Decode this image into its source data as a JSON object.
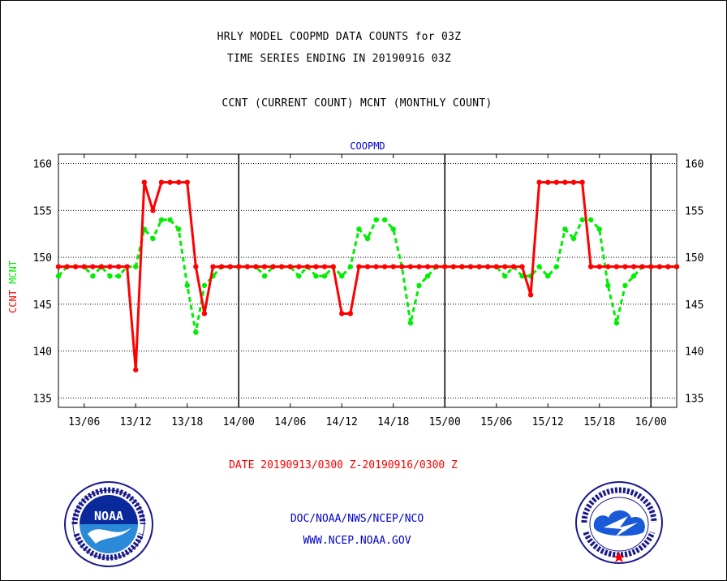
{
  "titles": {
    "line1": "HRLY MODEL COOPMD DATA COUNTS for 03Z",
    "line2": "TIME SERIES ENDING IN 20190916 03Z",
    "line3": "CCNT (CURRENT COUNT) MCNT (MONTHLY COUNT)"
  },
  "footer": {
    "date_range": "DATE 20190913/0300 Z-20190916/0300 Z",
    "org": "DOC/NOAA/NWS/NCEP/NCO",
    "url": "WWW.NCEP.NOAA.GOV"
  },
  "logos": {
    "left": {
      "icon": "noaa-logo",
      "text": "NOAA"
    },
    "right": {
      "icon": "nws-logo"
    }
  },
  "colors": {
    "ccnt": "#ff0000",
    "mcnt": "#00ee00",
    "label_blue": "#0000cc"
  },
  "chart_data": {
    "type": "line",
    "title": "COOPMD",
    "ylabel_parts": [
      {
        "text": "CCNT",
        "color": "#ff0000"
      },
      {
        "text": "MCNT",
        "color": "#00ee00"
      }
    ],
    "xlabel": "",
    "ylim": [
      134,
      161
    ],
    "yticks": [
      135,
      140,
      145,
      150,
      155,
      160
    ],
    "xlim": [
      0,
      72
    ],
    "xticks": [
      {
        "x": 3,
        "label": "13/06"
      },
      {
        "x": 9,
        "label": "13/12"
      },
      {
        "x": 15,
        "label": "13/18"
      },
      {
        "x": 21,
        "label": "14/00"
      },
      {
        "x": 27,
        "label": "14/06"
      },
      {
        "x": 33,
        "label": "14/12"
      },
      {
        "x": 39,
        "label": "14/18"
      },
      {
        "x": 45,
        "label": "15/00"
      },
      {
        "x": 51,
        "label": "15/06"
      },
      {
        "x": 57,
        "label": "15/12"
      },
      {
        "x": 63,
        "label": "15/18"
      },
      {
        "x": 69,
        "label": "16/00"
      }
    ],
    "day_boundaries": [
      21,
      45,
      69
    ],
    "grid": true,
    "series": [
      {
        "name": "CCNT",
        "style": "solid",
        "color": "#ff0000",
        "values": [
          149,
          149,
          149,
          149,
          149,
          149,
          149,
          149,
          149,
          138,
          158,
          155,
          158,
          158,
          158,
          158,
          149,
          144,
          149,
          149,
          149,
          149,
          149,
          149,
          149,
          149,
          149,
          149,
          149,
          149,
          149,
          149,
          149,
          144,
          144,
          149,
          149,
          149,
          149,
          149,
          149,
          149,
          149,
          149,
          149,
          149,
          149,
          149,
          149,
          149,
          149,
          149,
          149,
          149,
          149,
          146,
          158,
          158,
          158,
          158,
          158,
          158,
          149,
          149,
          149,
          149,
          149,
          149,
          149,
          149,
          149,
          149,
          149
        ]
      },
      {
        "name": "MCNT",
        "style": "dashed",
        "color": "#00ee00",
        "values": [
          148,
          149,
          149,
          149,
          148,
          149,
          148,
          148,
          149,
          149,
          153,
          152,
          154,
          154,
          153,
          147,
          142,
          147,
          148,
          149,
          149,
          149,
          149,
          149,
          148,
          149,
          149,
          149,
          148,
          149,
          148,
          148,
          149,
          148,
          149,
          153,
          152,
          154,
          154,
          153,
          149,
          143,
          147,
          148,
          149,
          149,
          149,
          149,
          149,
          149,
          149,
          149,
          148,
          149,
          148,
          148,
          149,
          148,
          149,
          153,
          152,
          154,
          154,
          153,
          147,
          143,
          147,
          148,
          149,
          149,
          149,
          149,
          149
        ]
      }
    ]
  }
}
